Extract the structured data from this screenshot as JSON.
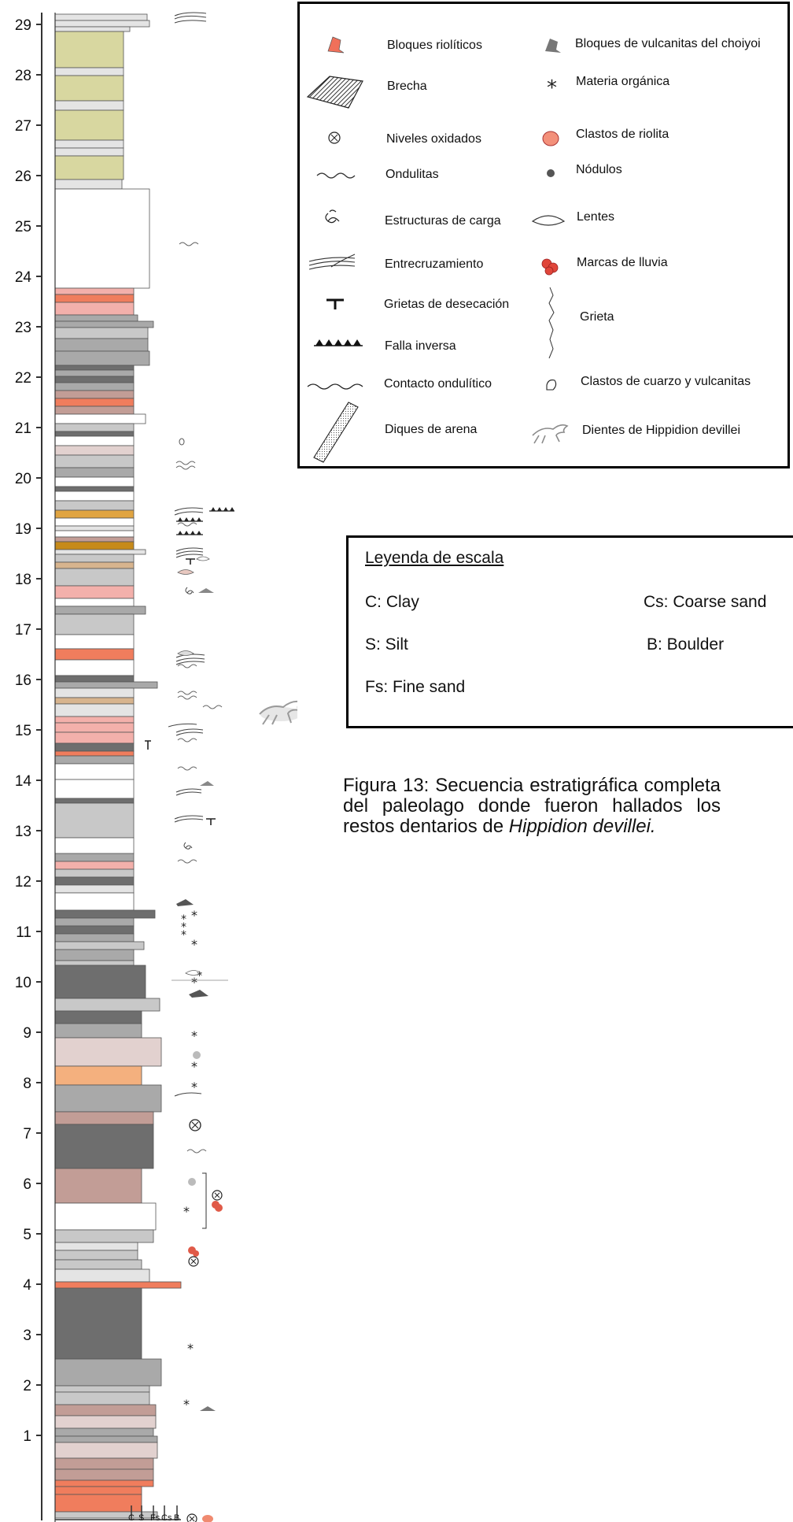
{
  "axis": {
    "ticks": [
      "1",
      "2",
      "3",
      "4",
      "5",
      "6",
      "7",
      "8",
      "9",
      "10",
      "11",
      "12",
      "13",
      "14",
      "15",
      "16",
      "17",
      "18",
      "19",
      "20",
      "21",
      "22",
      "23",
      "24",
      "25",
      "26",
      "27",
      "28",
      "29"
    ]
  },
  "grain_scale": {
    "labels": [
      "C",
      "S",
      "Fs",
      "Cs",
      "B"
    ]
  },
  "legend": {
    "left": [
      {
        "label": "Bloques riolíticos",
        "icon": "rhyolite-block-icon"
      },
      {
        "label": "Brecha",
        "icon": "breccia-icon"
      },
      {
        "label": "Niveles oxidados",
        "icon": "oxidized-level-icon"
      },
      {
        "label": "Ondulitas",
        "icon": "ripple-icon"
      },
      {
        "label": "Estructuras de carga",
        "icon": "load-structure-icon"
      },
      {
        "label": "Entrecruzamiento",
        "icon": "cross-bedding-icon"
      },
      {
        "label": "Grietas de desecación",
        "icon": "desiccation-crack-icon"
      },
      {
        "label": "Falla inversa",
        "icon": "reverse-fault-icon"
      },
      {
        "label": "Contacto ondulítico",
        "icon": "wavy-contact-icon"
      },
      {
        "label": "Diques de arena",
        "icon": "sand-dike-icon"
      }
    ],
    "right": [
      {
        "label": "Bloques de vulcanitas del choiyoi",
        "icon": "volcanic-block-icon"
      },
      {
        "label": "Materia orgánica",
        "icon": "organic-matter-icon"
      },
      {
        "label": "Clastos de riolita",
        "icon": "rhyolite-clast-icon"
      },
      {
        "label": "Nódulos",
        "icon": "nodule-icon"
      },
      {
        "label": "Lentes",
        "icon": "lens-icon"
      },
      {
        "label": "Marcas de lluvia",
        "icon": "rain-mark-icon"
      },
      {
        "label": "Grieta",
        "icon": "crack-icon"
      },
      {
        "label": "Clastos de cuarzo y vulcanitas",
        "icon": "quartz-clast-icon"
      },
      {
        "label": "Dientes de Hippidion devillei",
        "icon": "horse-tooth-icon"
      }
    ]
  },
  "scale_legend": {
    "title": "Leyenda de escala",
    "items": [
      "C: Clay",
      "Cs: Coarse sand",
      "S: Silt",
      "B: Boulder",
      "Fs: Fine sand"
    ]
  },
  "caption": {
    "text": "Figura 13: Secuencia estratigráfica completa del paleolago donde fueron hallados los restos dentarios de",
    "species": "Hippidion devillei."
  },
  "colors": {
    "dark_gray": "#6e6e6e",
    "mid_gray": "#a9a9a9",
    "light_gray": "#c8c8c8",
    "pale_gray": "#e4e4e4",
    "olive": "#d8d7a0",
    "salmon": "#f3b0ab",
    "red_orange": "#f07d5d",
    "brownish": "#c29d96",
    "rose_beige": "#e2d1cf",
    "ochre": "#e0a441",
    "dark_ochre": "#c68a1a",
    "orange_peach": "#f4b07e",
    "tan": "#d7b48e"
  }
}
